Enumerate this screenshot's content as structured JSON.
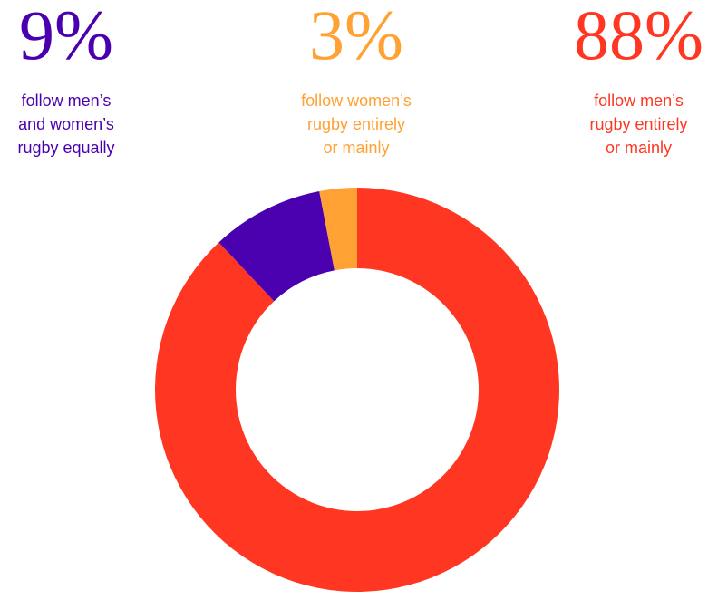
{
  "stats": [
    {
      "percent": "9%",
      "description": [
        "follow men’s",
        "and women’s",
        "rugby equally"
      ],
      "color": "#4b00b0"
    },
    {
      "percent": "3%",
      "description": [
        "follow women’s",
        "rugby entirely",
        "or mainly"
      ],
      "color": "#ffa133"
    },
    {
      "percent": "88%",
      "description": [
        "follow men’s",
        "rugby entirely",
        "or mainly"
      ],
      "color": "#ff3722"
    }
  ],
  "chart_data": {
    "type": "pie",
    "donut": true,
    "title": "",
    "slices": [
      {
        "label": "follow men’s rugby entirely or mainly",
        "value": 88,
        "color": "#ff3722"
      },
      {
        "label": "follow men’s and women’s rugby equally",
        "value": 9,
        "color": "#4b00b0"
      },
      {
        "label": "follow women’s rugby entirely or mainly",
        "value": 3,
        "color": "#ffa133"
      }
    ],
    "start_angle": "12 o'clock",
    "direction": "clockwise"
  }
}
